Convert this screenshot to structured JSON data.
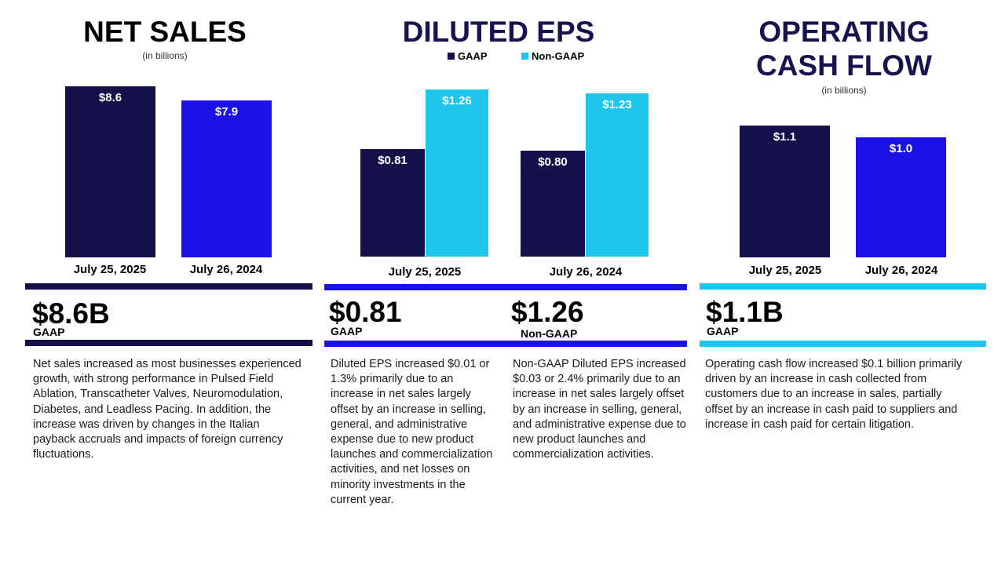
{
  "colors": {
    "navy": "#14104a",
    "blue": "#1b12e6",
    "cyan": "#1ec6ee",
    "title_navy": "#17134e"
  },
  "net_sales": {
    "title": "NET SALES",
    "subtitle": "(in billions)",
    "headline": "$8.6B",
    "headline_tag": "GAAP",
    "text": "Net sales increased as most businesses experienced growth, with strong performance in Pulsed Field Ablation, Transcatheter Valves, Neuromodulation, Diabetes, and Leadless Pacing. In addition, the increase was driven by changes in the Italian payback accruals and impacts of foreign currency fluctuations."
  },
  "eps": {
    "title": "DILUTED EPS",
    "legend": [
      "GAAP",
      "Non-GAAP"
    ],
    "gaap_headline": "$0.81",
    "gaap_tag": "GAAP",
    "nongaap_headline": "$1.26",
    "nongaap_tag": "Non-GAAP",
    "gaap_text": "Diluted EPS increased $0.01 or 1.3% primarily due to an increase in net sales largely offset by an increase in selling, general, and administrative expense due to new product launches and commercialization activities, and net losses on minority investments in the current year.",
    "nongaap_text": "Non-GAAP Diluted EPS increased $0.03 or 2.4% primarily due to an increase in net sales largely offset by an increase in selling, general, and administrative expense due to new product launches and commercialization activities."
  },
  "ocf": {
    "title_line1": "OPERATING",
    "title_line2": "CASH FLOW",
    "subtitle": "(in billions)",
    "headline": "$1.1B",
    "headline_tag": "GAAP",
    "text": "Operating cash flow increased $0.1 billion primarily driven by an increase in cash collected from customers due to an increase in sales, partially offset by an increase in cash paid to suppliers and increase in cash paid for certain litigation."
  },
  "chart_data": [
    {
      "type": "bar",
      "title": "NET SALES",
      "ylabel": "(in billions)",
      "categories": [
        "July 25, 2025",
        "July 26, 2024"
      ],
      "values": [
        8.6,
        7.9
      ],
      "labels": [
        "$8.6",
        "$7.9"
      ],
      "ylim": [
        0,
        8.6
      ]
    },
    {
      "type": "bar",
      "title": "DILUTED EPS",
      "categories": [
        "July 25, 2025",
        "July 26, 2024"
      ],
      "series": [
        {
          "name": "GAAP",
          "values": [
            0.81,
            0.8
          ],
          "labels": [
            "$0.81",
            "$0.80"
          ]
        },
        {
          "name": "Non-GAAP",
          "values": [
            1.26,
            1.23
          ],
          "labels": [
            "$1.26",
            "$1.23"
          ]
        }
      ],
      "ylim": [
        0,
        1.26
      ]
    },
    {
      "type": "bar",
      "title": "OPERATING CASH FLOW",
      "ylabel": "(in billions)",
      "categories": [
        "July 25, 2025",
        "July 26, 2024"
      ],
      "values": [
        1.1,
        1.0
      ],
      "labels": [
        "$1.1",
        "$1.0"
      ],
      "ylim": [
        0,
        1.1
      ]
    }
  ]
}
